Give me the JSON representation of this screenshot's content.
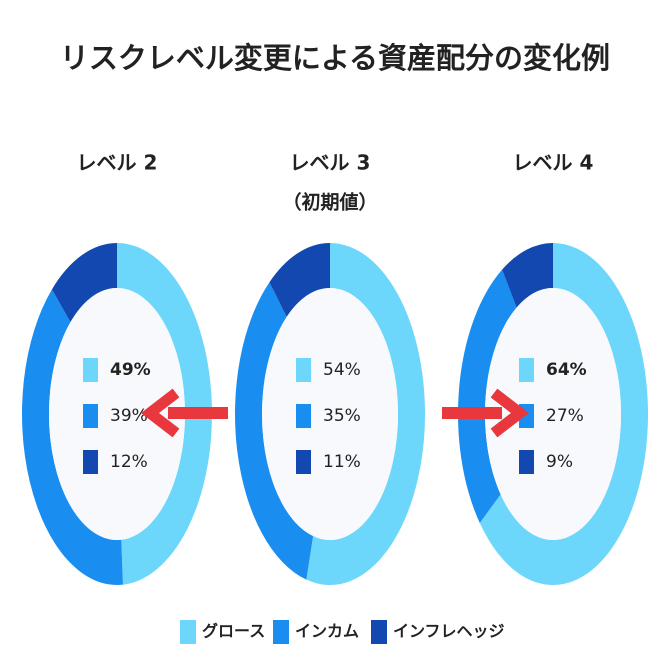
{
  "title": "リスクレベル変更による資産配分の変化例",
  "chart_data": [
    {
      "type": "pie",
      "donut": true,
      "title": "レベル 2",
      "categories": [
        "グロース",
        "インカム",
        "インフレヘッジ"
      ],
      "values": [
        49,
        39,
        12
      ],
      "value_labels": [
        "49%",
        "39%",
        "12%"
      ],
      "colors": [
        "#6dd6fb",
        "#1a8ef0",
        "#1248b0"
      ],
      "highlight": [
        0
      ],
      "highlight_color": "#e8383d"
    },
    {
      "type": "pie",
      "donut": true,
      "title": "レベル 3",
      "subtitle": "（初期値）",
      "categories": [
        "グロース",
        "インカム",
        "インフレヘッジ"
      ],
      "values": [
        54,
        35,
        11
      ],
      "value_labels": [
        "54%",
        "35%",
        "11%"
      ],
      "colors": [
        "#6dd6fb",
        "#1a8ef0",
        "#1248b0"
      ],
      "highlight": [],
      "highlight_color": "#e8383d"
    },
    {
      "type": "pie",
      "donut": true,
      "title": "レベル 4",
      "categories": [
        "グロース",
        "インカム",
        "インフレヘッジ"
      ],
      "values": [
        64,
        27,
        9
      ],
      "value_labels": [
        "64%",
        "27%",
        "9%"
      ],
      "colors": [
        "#6dd6fb",
        "#1a8ef0",
        "#1248b0"
      ],
      "highlight": [
        0
      ],
      "highlight_color": "#e8383d"
    }
  ]
}
